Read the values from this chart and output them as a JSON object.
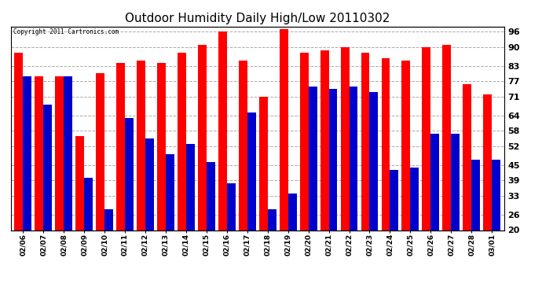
{
  "title": "Outdoor Humidity Daily High/Low 20110302",
  "copyright": "Copyright 2011 Cartronics.com",
  "dates": [
    "02/06",
    "02/07",
    "02/08",
    "02/09",
    "02/10",
    "02/11",
    "02/12",
    "02/13",
    "02/14",
    "02/15",
    "02/16",
    "02/17",
    "02/18",
    "02/19",
    "02/20",
    "02/21",
    "02/22",
    "02/23",
    "02/24",
    "02/25",
    "02/26",
    "02/27",
    "02/28",
    "03/01"
  ],
  "highs": [
    88,
    79,
    79,
    56,
    80,
    84,
    85,
    84,
    88,
    91,
    96,
    85,
    71,
    97,
    88,
    89,
    90,
    88,
    86,
    85,
    90,
    91,
    76,
    72
  ],
  "lows": [
    79,
    68,
    79,
    40,
    28,
    63,
    55,
    49,
    53,
    46,
    38,
    65,
    28,
    34,
    75,
    74,
    75,
    73,
    43,
    44,
    57,
    57,
    47,
    47
  ],
  "bar_width": 0.42,
  "high_color": "#ff0000",
  "low_color": "#0000cc",
  "bg_color": "#ffffff",
  "plot_bg_color": "#ffffff",
  "grid_color": "#aaaaaa",
  "title_fontsize": 11,
  "ymin": 20,
  "ymax": 98,
  "yticks": [
    20,
    26,
    33,
    39,
    45,
    52,
    58,
    64,
    71,
    77,
    83,
    90,
    96
  ]
}
